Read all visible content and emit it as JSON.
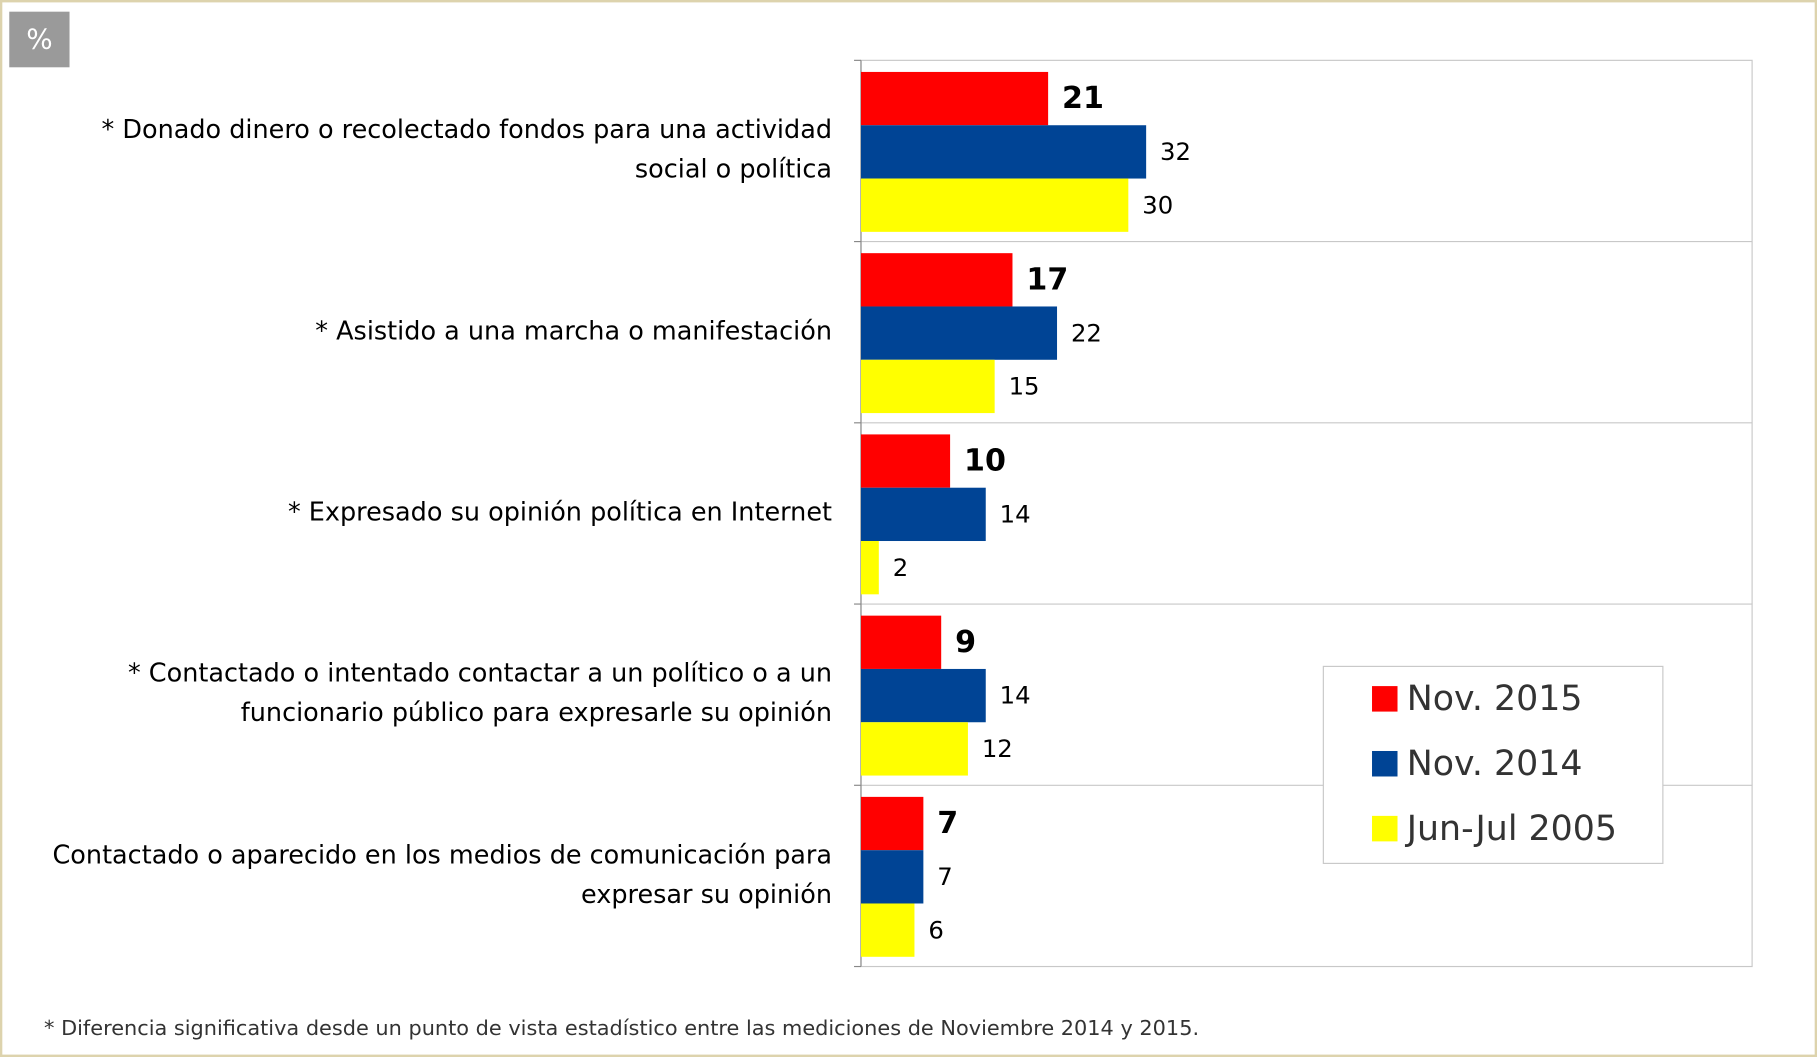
{
  "chart_data": {
    "type": "barh",
    "unit_label": "%",
    "categories": [
      "* Donado dinero o recolectado fondos para una actividad social o política",
      "* Asistido a una marcha o manifestación",
      "* Expresado su opinión política en Internet",
      "* Contactado o intentado contactar a un político o a un funcionario público para expresarle su opinión",
      "Contactado o aparecido en los medios de comunicación para expresar su opinión"
    ],
    "series": [
      {
        "name": "Nov. 2015",
        "color": "#ff0000",
        "values": [
          21,
          17,
          10,
          9,
          7
        ],
        "bold_labels": true
      },
      {
        "name": "Nov. 2014",
        "color": "#004495",
        "values": [
          32,
          22,
          14,
          14,
          7
        ],
        "bold_labels": false
      },
      {
        "name": "Jun-Jul 2005",
        "color": "#ffff00",
        "values": [
          30,
          15,
          2,
          12,
          6
        ],
        "bold_labels": false
      }
    ],
    "xlim": [
      0,
      100
    ],
    "grid": true,
    "legend": "lower right",
    "footnote": "* Diferencia significativa desde un punto de vista estadístico entre las mediciones de Noviembre 2014 y 2015."
  }
}
